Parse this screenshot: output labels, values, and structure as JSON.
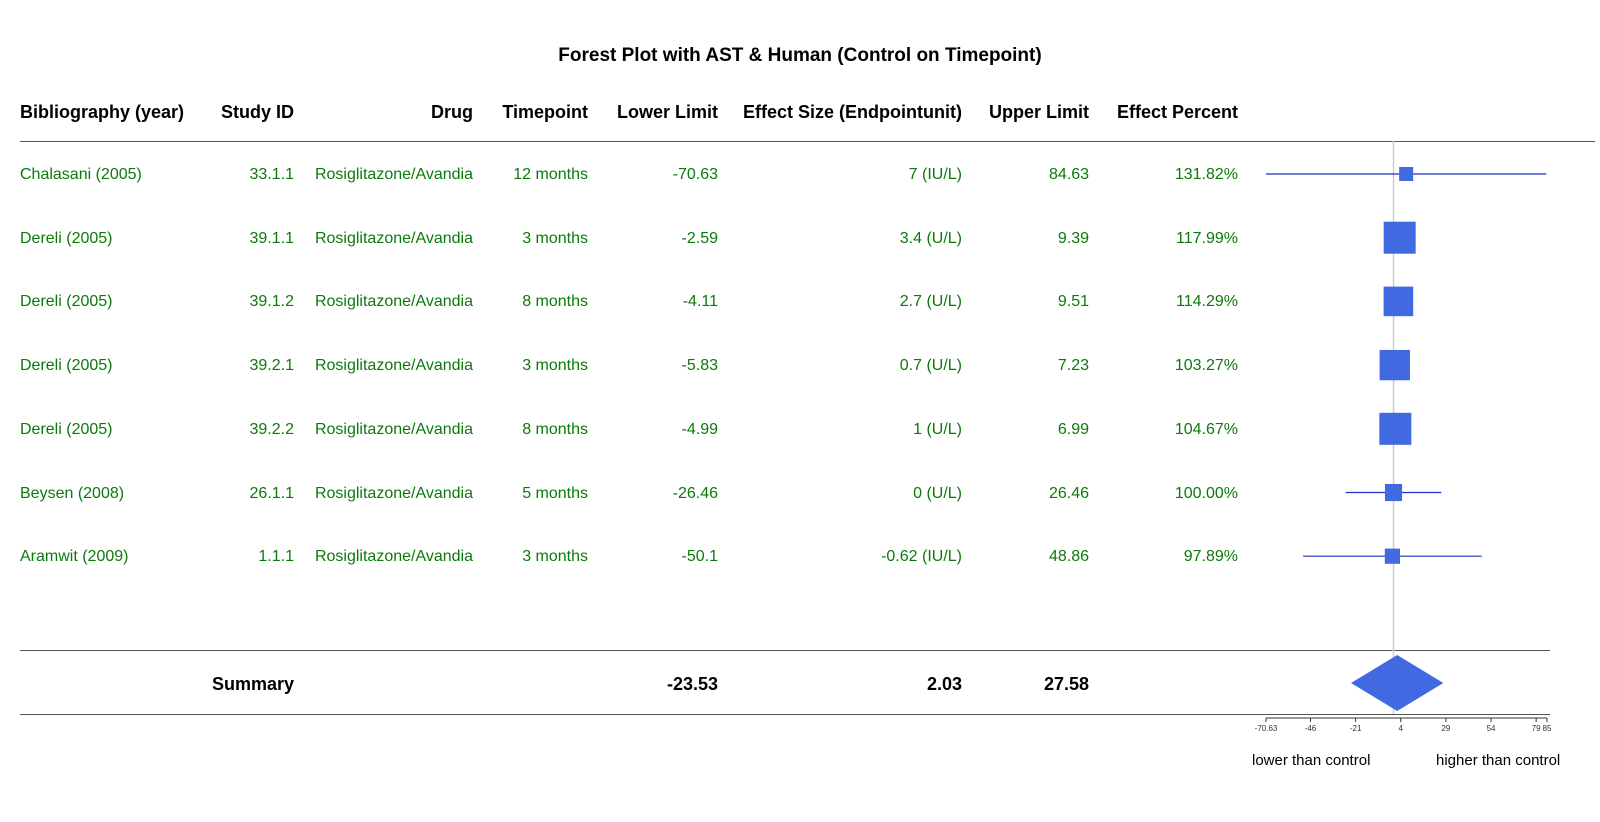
{
  "chart_data": {
    "type": "forest",
    "title": "Forest Plot with AST & Human (Control on Timepoint)",
    "columns": [
      "Bibliography (year)",
      "Study ID",
      "Drug",
      "Timepoint",
      "Lower Limit",
      "Effect Size (Endpointunit)",
      "Upper Limit",
      "Effect Percent"
    ],
    "rows": [
      {
        "bib": "Chalasani (2005)",
        "study_id": "33.1.1",
        "drug": "Rosiglitazone/Avandia",
        "timepoint": "12 months",
        "lower": "-70.63",
        "effect": "7 (IU/L)",
        "upper": "84.63",
        "percent": "131.82%",
        "lo": -70.63,
        "est": 7,
        "hi": 84.63,
        "weight": 0.25
      },
      {
        "bib": "Dereli (2005)",
        "study_id": "39.1.1",
        "drug": "Rosiglitazone/Avandia",
        "timepoint": "3 months",
        "lower": "-2.59",
        "effect": "3.4 (U/L)",
        "upper": "9.39",
        "percent": "117.99%",
        "lo": -2.59,
        "est": 3.4,
        "hi": 9.39,
        "weight": 1.0
      },
      {
        "bib": "Dereli (2005)",
        "study_id": "39.1.2",
        "drug": "Rosiglitazone/Avandia",
        "timepoint": "8 months",
        "lower": "-4.11",
        "effect": "2.7 (U/L)",
        "upper": "9.51",
        "percent": "114.29%",
        "lo": -4.11,
        "est": 2.7,
        "hi": 9.51,
        "weight": 0.9
      },
      {
        "bib": "Dereli (2005)",
        "study_id": "39.2.1",
        "drug": "Rosiglitazone/Avandia",
        "timepoint": "3 months",
        "lower": "-5.83",
        "effect": "0.7 (U/L)",
        "upper": "7.23",
        "percent": "103.27%",
        "lo": -5.83,
        "est": 0.7,
        "hi": 7.23,
        "weight": 0.93
      },
      {
        "bib": "Dereli (2005)",
        "study_id": "39.2.2",
        "drug": "Rosiglitazone/Avandia",
        "timepoint": "8 months",
        "lower": "-4.99",
        "effect": "1 (U/L)",
        "upper": "6.99",
        "percent": "104.67%",
        "lo": -4.99,
        "est": 1,
        "hi": 6.99,
        "weight": 1.0
      },
      {
        "bib": "Beysen (2008)",
        "study_id": "26.1.1",
        "drug": "Rosiglitazone/Avandia",
        "timepoint": "5 months",
        "lower": "-26.46",
        "effect": "0 (U/L)",
        "upper": "26.46",
        "percent": "100.00%",
        "lo": -26.46,
        "est": 0,
        "hi": 26.46,
        "weight": 0.38
      },
      {
        "bib": "Aramwit (2009)",
        "study_id": "1.1.1",
        "drug": "Rosiglitazone/Avandia",
        "timepoint": "3 months",
        "lower": "-50.1",
        "effect": "-0.62 (IU/L)",
        "upper": "48.86",
        "percent": "97.89%",
        "lo": -50.1,
        "est": -0.62,
        "hi": 48.86,
        "weight": 0.3
      }
    ],
    "summary": {
      "label": "Summary",
      "lower": "-23.53",
      "effect": "2.03",
      "upper": "27.58",
      "lo": -23.53,
      "est": 2.03,
      "hi": 27.58
    },
    "x_ticks": [
      "-70.63",
      "-46",
      "-21",
      "4",
      "29",
      "54",
      "79",
      "85"
    ],
    "xlim": [
      -70.63,
      85
    ],
    "reference_line": 0,
    "footer_left": "lower than control",
    "footer_right": "higher than control",
    "colors": {
      "text": "#0b7a0b",
      "marker": "#4169e1",
      "ci_line": "#1f2fbf",
      "ref_line": "#cccccc"
    }
  }
}
